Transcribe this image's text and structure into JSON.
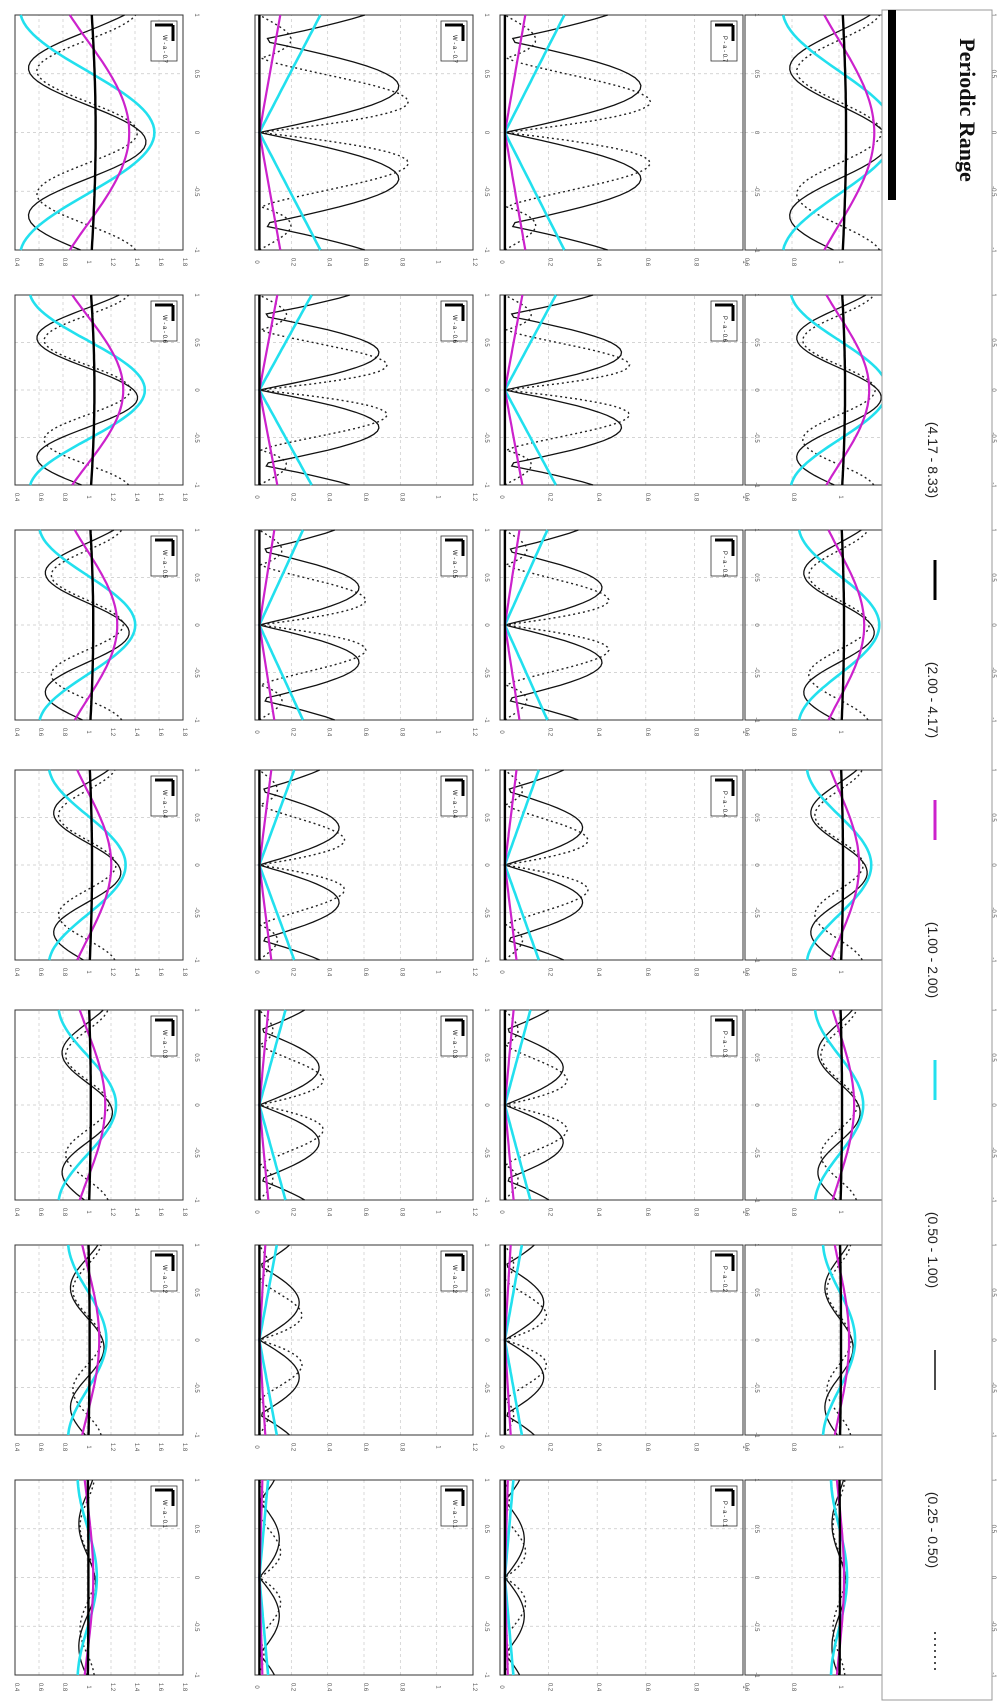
{
  "figure": {
    "rows": [
      "W",
      "W",
      "P",
      "P"
    ],
    "cols": [
      "0.1",
      "0.2",
      "0.3",
      "0.4",
      "0.5",
      "0.6",
      "0.7"
    ],
    "panel_label_template": "{r} - a - {c}"
  },
  "legend": {
    "title": "Periodic Range",
    "entries": [
      {
        "label": "(0.25 - 0.50)",
        "style": "dotted",
        "color": "#222222"
      },
      {
        "label": "(0.50 - 1.00)",
        "style": "solid",
        "color": "#111111"
      },
      {
        "label": "(1.00 - 2.00)",
        "style": "solid",
        "color": "#22e0ee"
      },
      {
        "label": "(2.00 - 4.17)",
        "style": "solid",
        "color": "#cc22cc"
      },
      {
        "label": "(4.17 - 8.33)",
        "style": "solid-thick",
        "color": "#000000"
      }
    ]
  },
  "chart_data": [
    {
      "type": "line",
      "name": "row1",
      "x_ticks": [
        "-1",
        "-0.5",
        "0",
        "0.5",
        "1"
      ],
      "y_ticks": [
        "1.8",
        "1.6",
        "1.4",
        "1.2",
        "1",
        "0.8",
        "0.6",
        "0.4"
      ],
      "ylim": [
        0.4,
        1.8
      ],
      "xlim": [
        -1,
        1
      ],
      "grid": true
    },
    {
      "type": "line",
      "name": "row2",
      "x_ticks": [
        "-1",
        "-0.5",
        "0",
        "0.5",
        "1"
      ],
      "y_ticks": [
        "1.2",
        "1",
        "0.8",
        "0.6",
        "0.4",
        "0.2",
        "0"
      ],
      "ylim": [
        0,
        1.2
      ],
      "xlim": [
        -1,
        1
      ],
      "grid": true
    },
    {
      "type": "line",
      "name": "row3",
      "x_ticks": [
        "-1",
        "-0.5",
        "0",
        "0.5",
        "1"
      ],
      "y_ticks": [
        "1",
        "0.8",
        "0.6",
        "0.4",
        "0.2",
        "0"
      ],
      "ylim": [
        0,
        1
      ],
      "xlim": [
        -1,
        1
      ],
      "grid": true
    },
    {
      "type": "line",
      "name": "row4",
      "x_ticks": [
        "-1",
        "-0.5",
        "0",
        "0.5",
        "1"
      ],
      "y_ticks": [
        "1.6",
        "1.4",
        "1.2",
        "1",
        "0.8",
        "0.6"
      ],
      "ylim": [
        0.6,
        1.6
      ],
      "xlim": [
        -1,
        1
      ],
      "grid": true
    }
  ]
}
